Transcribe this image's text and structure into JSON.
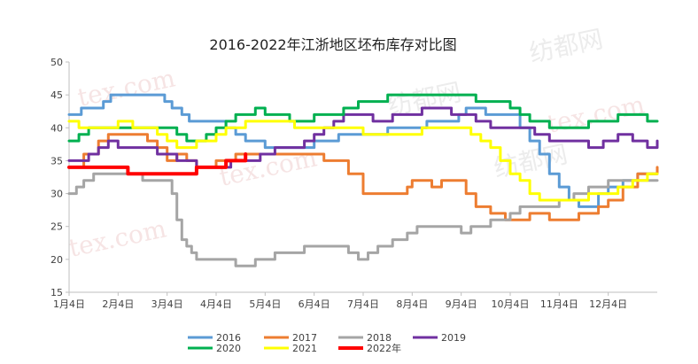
{
  "chart_data": {
    "type": "line",
    "title": "2016-2022年江浙地区坯布库存对比图",
    "xlabel": "",
    "ylabel": "",
    "ylim": [
      15,
      50
    ],
    "yticks": [
      15,
      20,
      25,
      30,
      35,
      40,
      45,
      50
    ],
    "xmax": 12,
    "x_ticks": [
      {
        "x": 0,
        "label": "1月4日"
      },
      {
        "x": 1,
        "label": "2月4日"
      },
      {
        "x": 2,
        "label": "3月4日"
      },
      {
        "x": 3,
        "label": "4月4日"
      },
      {
        "x": 4,
        "label": "5月4日"
      },
      {
        "x": 5,
        "label": "6月4日"
      },
      {
        "x": 6,
        "label": "7月4日"
      },
      {
        "x": 7,
        "label": "8月4日"
      },
      {
        "x": 8,
        "label": "9月4日"
      },
      {
        "x": 9,
        "label": "10月4日"
      },
      {
        "x": 10,
        "label": "11月4日"
      },
      {
        "x": 11,
        "label": "12月4日"
      }
    ],
    "grid": false,
    "legend_position": "bottom",
    "series": [
      {
        "name": "2016",
        "color": "#5b9bd5",
        "width": 3,
        "x": [
          0,
          0.1,
          0.25,
          0.5,
          0.7,
          0.85,
          1.0,
          1.3,
          1.6,
          1.8,
          1.95,
          2.1,
          2.3,
          2.45,
          2.6,
          3.0,
          3.2,
          3.4,
          3.6,
          4.0,
          4.5,
          5.0,
          5.5,
          6.0,
          6.5,
          7.0,
          7.3,
          7.6,
          7.8,
          7.95,
          8.1,
          8.3,
          8.5,
          8.7,
          9.0,
          9.2,
          9.4,
          9.6,
          9.8,
          10.0,
          10.2,
          10.4,
          10.6,
          10.8,
          11.0,
          11.3,
          11.6,
          11.9,
          12.0
        ],
        "y": [
          42,
          42,
          43,
          43,
          44,
          45,
          45,
          45,
          45,
          45,
          44,
          43,
          42,
          41,
          41,
          41,
          40,
          39,
          38,
          37,
          37,
          38,
          39,
          39,
          40,
          40,
          41,
          41,
          41,
          42,
          43,
          43,
          42,
          42,
          42,
          40,
          38,
          36,
          33,
          31,
          29,
          28,
          28,
          30,
          31,
          32,
          33,
          33,
          33
        ]
      },
      {
        "name": "2017",
        "color": "#ed7d31",
        "width": 3,
        "x": [
          0,
          0.3,
          0.6,
          0.8,
          1.0,
          1.3,
          1.6,
          1.8,
          2.0,
          2.2,
          2.4,
          2.6,
          3.0,
          3.4,
          3.6,
          3.8,
          4.0,
          4.3,
          4.6,
          4.9,
          5.0,
          5.2,
          5.5,
          5.7,
          6.0,
          6.3,
          6.6,
          6.9,
          7.0,
          7.2,
          7.4,
          7.6,
          7.8,
          8.0,
          8.1,
          8.3,
          8.6,
          8.9,
          9.2,
          9.4,
          9.6,
          9.8,
          10.0,
          10.2,
          10.4,
          10.6,
          10.8,
          11.0,
          11.3,
          11.6,
          12.0
        ],
        "y": [
          34,
          36,
          38,
          39,
          39,
          39,
          38,
          37,
          35,
          36,
          35,
          34,
          35,
          36,
          36,
          36,
          36,
          36,
          36,
          36,
          36,
          35,
          35,
          33,
          30,
          30,
          30,
          31,
          32,
          32,
          31,
          32,
          32,
          32,
          30,
          28,
          27,
          26,
          26,
          27,
          27,
          26,
          26,
          26,
          27,
          27,
          28,
          29,
          31,
          33,
          34
        ]
      },
      {
        "name": "2018",
        "color": "#a5a5a5",
        "width": 3,
        "x": [
          0,
          0.15,
          0.3,
          0.5,
          0.8,
          1.0,
          1.2,
          1.5,
          1.8,
          2.0,
          2.1,
          2.2,
          2.3,
          2.4,
          2.5,
          2.6,
          2.8,
          3.0,
          3.2,
          3.4,
          3.6,
          3.8,
          4.0,
          4.2,
          4.5,
          4.8,
          5.0,
          5.2,
          5.5,
          5.7,
          5.9,
          6.1,
          6.3,
          6.6,
          6.9,
          7.1,
          7.3,
          7.5,
          7.7,
          7.9,
          8.0,
          8.2,
          8.4,
          8.6,
          8.8,
          9.0,
          9.2,
          9.5,
          9.8,
          10.0,
          10.3,
          10.6,
          11.0,
          11.4,
          11.8,
          12.0
        ],
        "y": [
          30,
          31,
          32,
          33,
          33,
          33,
          33,
          32,
          32,
          32,
          30,
          26,
          23,
          22,
          21,
          20,
          20,
          20,
          20,
          19,
          19,
          20,
          20,
          21,
          21,
          22,
          22,
          22,
          22,
          21,
          20,
          21,
          22,
          23,
          24,
          25,
          25,
          25,
          25,
          25,
          24,
          25,
          25,
          26,
          26,
          27,
          28,
          28,
          28,
          29,
          30,
          31,
          32,
          32,
          32,
          32
        ]
      },
      {
        "name": "2019",
        "color": "#7030a0",
        "width": 3,
        "x": [
          0,
          0.2,
          0.4,
          0.6,
          0.8,
          1.0,
          1.3,
          1.6,
          1.8,
          2.0,
          2.2,
          2.4,
          2.6,
          2.8,
          3.0,
          3.3,
          3.6,
          3.9,
          4.2,
          4.5,
          4.8,
          5.0,
          5.2,
          5.4,
          5.6,
          5.8,
          6.0,
          6.2,
          6.4,
          6.6,
          6.8,
          7.0,
          7.2,
          7.4,
          7.6,
          7.8,
          8.0,
          8.3,
          8.6,
          8.9,
          9.2,
          9.5,
          9.8,
          10.0,
          10.3,
          10.6,
          10.9,
          11.2,
          11.5,
          11.8,
          12.0
        ],
        "y": [
          35,
          35,
          36,
          37,
          38,
          37,
          37,
          37,
          36,
          36,
          35,
          35,
          34,
          34,
          34,
          35,
          35,
          36,
          37,
          37,
          38,
          39,
          40,
          41,
          42,
          42,
          42,
          41,
          41,
          42,
          42,
          42,
          43,
          43,
          43,
          42,
          42,
          41,
          40,
          40,
          40,
          39,
          38,
          38,
          38,
          37,
          38,
          39,
          38,
          37,
          38
        ]
      },
      {
        "name": "2020",
        "color": "#00b050",
        "width": 3,
        "x": [
          0,
          0.2,
          0.4,
          0.6,
          0.8,
          1.0,
          1.3,
          1.6,
          1.8,
          2.0,
          2.2,
          2.4,
          2.6,
          2.8,
          3.0,
          3.2,
          3.4,
          3.6,
          3.8,
          4.0,
          4.2,
          4.5,
          4.8,
          5.0,
          5.3,
          5.6,
          5.9,
          6.2,
          6.5,
          6.8,
          7.0,
          7.3,
          7.6,
          7.9,
          8.0,
          8.3,
          8.6,
          8.8,
          9.0,
          9.2,
          9.4,
          9.6,
          9.8,
          10.0,
          10.3,
          10.6,
          10.9,
          11.2,
          11.5,
          11.8,
          12.0
        ],
        "y": [
          38,
          39,
          40,
          40,
          40,
          40,
          40,
          40,
          40,
          40,
          39,
          38,
          38,
          39,
          40,
          41,
          42,
          42,
          43,
          42,
          42,
          41,
          41,
          42,
          42,
          43,
          44,
          44,
          45,
          45,
          45,
          45,
          45,
          45,
          45,
          44,
          44,
          44,
          43,
          42,
          41,
          41,
          40,
          40,
          40,
          41,
          41,
          42,
          42,
          41,
          41
        ]
      },
      {
        "name": "2021",
        "color": "#ffff00",
        "width": 3,
        "x": [
          0,
          0.2,
          0.4,
          0.6,
          0.8,
          1.0,
          1.3,
          1.6,
          1.8,
          2.0,
          2.2,
          2.4,
          2.6,
          2.8,
          3.0,
          3.2,
          3.4,
          3.6,
          3.8,
          4.0,
          4.3,
          4.6,
          4.9,
          5.2,
          5.5,
          5.8,
          6.0,
          6.3,
          6.6,
          6.9,
          7.2,
          7.5,
          7.8,
          8.0,
          8.2,
          8.4,
          8.6,
          8.8,
          9.0,
          9.2,
          9.4,
          9.6,
          9.8,
          10.0,
          10.3,
          10.6,
          10.9,
          11.2,
          11.5,
          11.8,
          12.0
        ],
        "y": [
          41,
          40,
          40,
          40,
          40,
          41,
          40,
          40,
          39,
          38,
          37,
          37,
          38,
          38,
          39,
          40,
          40,
          41,
          41,
          41,
          41,
          40,
          40,
          40,
          40,
          40,
          39,
          39,
          39,
          39,
          40,
          40,
          40,
          40,
          39,
          38,
          37,
          35,
          33,
          32,
          30,
          29,
          29,
          29,
          29,
          30,
          30,
          31,
          32,
          33,
          33
        ]
      },
      {
        "name": "2022年",
        "color": "#ff0000",
        "width": 4,
        "x": [
          0,
          0.3,
          0.6,
          0.9,
          1.2,
          1.5,
          1.8,
          2.0,
          2.2,
          2.4,
          2.6,
          2.8,
          3.0,
          3.2,
          3.4,
          3.6
        ],
        "y": [
          34,
          34,
          34,
          34,
          33,
          33,
          33,
          33,
          33,
          33,
          34,
          34,
          34,
          35,
          35,
          36
        ]
      }
    ]
  },
  "watermarks": {
    "brand": "tex.com",
    "mark": "纺都网"
  }
}
